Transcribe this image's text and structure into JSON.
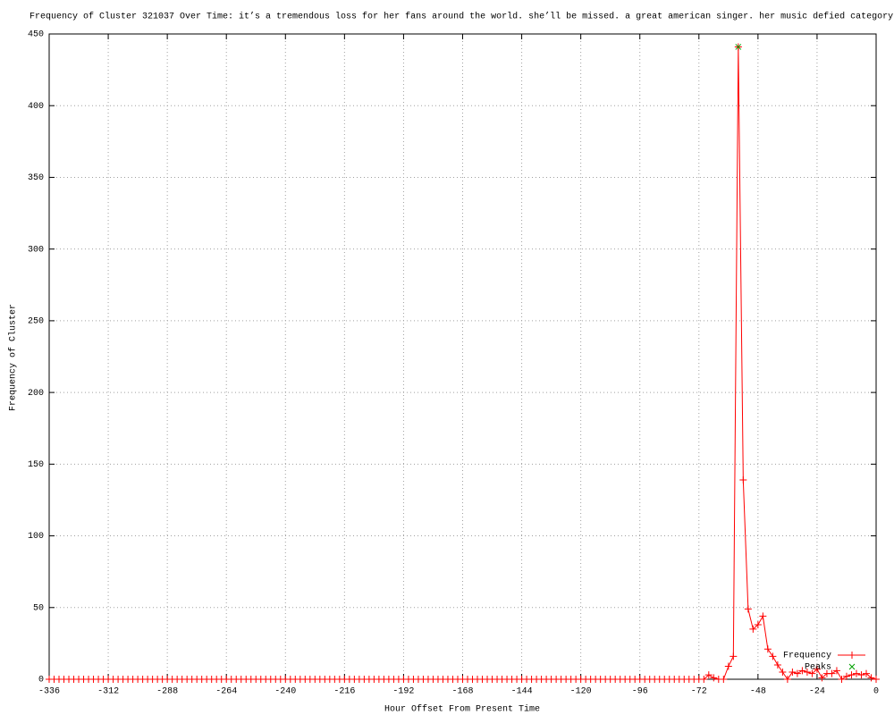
{
  "chart_data": {
    "type": "line",
    "title": "Frequency of Cluster 321037 Over Time: it’s a tremendous loss for her fans around the world. she’ll be missed. a great american singer. her music defied category",
    "xlabel": "Hour Offset From Present Time",
    "ylabel": "Frequency of Cluster",
    "x": [
      -336,
      -334,
      -332,
      -330,
      -328,
      -326,
      -324,
      -322,
      -320,
      -318,
      -316,
      -314,
      -312,
      -310,
      -308,
      -306,
      -304,
      -302,
      -300,
      -298,
      -296,
      -294,
      -292,
      -290,
      -288,
      -286,
      -284,
      -282,
      -280,
      -278,
      -276,
      -274,
      -272,
      -270,
      -268,
      -266,
      -264,
      -262,
      -260,
      -258,
      -256,
      -254,
      -252,
      -250,
      -248,
      -246,
      -244,
      -242,
      -240,
      -238,
      -236,
      -234,
      -232,
      -230,
      -228,
      -226,
      -224,
      -222,
      -220,
      -218,
      -216,
      -214,
      -212,
      -210,
      -208,
      -206,
      -204,
      -202,
      -200,
      -198,
      -196,
      -194,
      -192,
      -190,
      -188,
      -186,
      -184,
      -182,
      -180,
      -178,
      -176,
      -174,
      -172,
      -170,
      -168,
      -166,
      -164,
      -162,
      -160,
      -158,
      -156,
      -154,
      -152,
      -150,
      -148,
      -146,
      -144,
      -142,
      -140,
      -138,
      -136,
      -134,
      -132,
      -130,
      -128,
      -126,
      -124,
      -122,
      -120,
      -118,
      -116,
      -114,
      -112,
      -110,
      -108,
      -106,
      -104,
      -102,
      -100,
      -98,
      -96,
      -94,
      -92,
      -90,
      -88,
      -86,
      -84,
      -82,
      -80,
      -78,
      -76,
      -74,
      -72,
      -70,
      -68,
      -66,
      -64,
      -62,
      -60,
      -58,
      -56,
      -54,
      -52,
      -50,
      -48,
      -46,
      -44,
      -42,
      -40,
      -38,
      -36,
      -34,
      -32,
      -30,
      -28,
      -26,
      -24,
      -22,
      -20,
      -18,
      -16,
      -14,
      -12,
      -10,
      -8,
      -6,
      -4,
      -2,
      0
    ],
    "series": [
      {
        "name": "Frequency",
        "color": "#ff0000",
        "marker": "plus",
        "values": [
          0,
          0,
          0,
          0,
          0,
          0,
          0,
          0,
          0,
          0,
          0,
          0,
          0,
          0,
          0,
          0,
          0,
          0,
          0,
          0,
          0,
          0,
          0,
          0,
          0,
          0,
          0,
          0,
          0,
          0,
          0,
          0,
          0,
          0,
          0,
          0,
          0,
          0,
          0,
          0,
          0,
          0,
          0,
          0,
          0,
          0,
          0,
          0,
          0,
          0,
          0,
          0,
          0,
          0,
          0,
          0,
          0,
          0,
          0,
          0,
          0,
          0,
          0,
          0,
          0,
          0,
          0,
          0,
          0,
          0,
          0,
          0,
          0,
          0,
          0,
          0,
          0,
          0,
          0,
          0,
          0,
          0,
          0,
          0,
          0,
          0,
          0,
          0,
          0,
          0,
          0,
          0,
          0,
          0,
          0,
          0,
          0,
          0,
          0,
          0,
          0,
          0,
          0,
          0,
          0,
          0,
          0,
          0,
          0,
          0,
          0,
          0,
          0,
          0,
          0,
          0,
          0,
          0,
          0,
          0,
          0,
          0,
          0,
          0,
          0,
          0,
          0,
          0,
          0,
          0,
          0,
          0,
          0,
          0,
          3,
          1,
          0,
          0,
          9,
          16,
          441,
          139,
          49,
          35,
          38,
          44,
          21,
          16,
          10,
          5,
          0,
          5,
          4,
          6,
          5,
          4,
          7,
          1,
          4,
          4,
          6,
          0,
          2,
          3,
          4,
          3,
          4,
          1,
          0
        ]
      },
      {
        "name": "Peaks",
        "color": "#00a000",
        "marker": "cross",
        "x": [
          -56
        ],
        "values": [
          441
        ]
      }
    ],
    "xlim": [
      -336,
      0
    ],
    "xticks": [
      -336,
      -312,
      -288,
      -264,
      -240,
      -216,
      -192,
      -168,
      -144,
      -120,
      -96,
      -72,
      -48,
      -24,
      0
    ],
    "ylim": [
      0,
      450
    ],
    "yticks": [
      0,
      50,
      100,
      150,
      200,
      250,
      300,
      350,
      400,
      450
    ],
    "grid": true,
    "legend": "lower right"
  }
}
